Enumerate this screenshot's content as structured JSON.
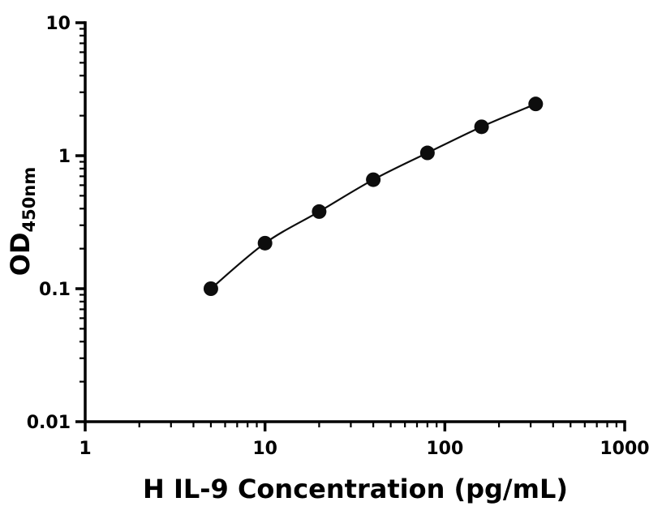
{
  "chart_data": {
    "type": "scatter",
    "subtype": "standard-curve-with-smooth-line",
    "title": "",
    "xlabel": "H IL-9 Concentration (pg/mL)",
    "ylabel": "OD450nm",
    "ylabel_main": "OD",
    "ylabel_sub": "450nm",
    "x_scale": "log",
    "y_scale": "log",
    "xlim": [
      1,
      1000
    ],
    "ylim": [
      0.01,
      10
    ],
    "x": [
      5,
      10,
      20,
      40,
      80,
      160,
      320
    ],
    "y": [
      0.1,
      0.22,
      0.38,
      0.66,
      1.05,
      1.65,
      2.45
    ],
    "x_ticks": [
      {
        "v": 1,
        "label": "1"
      },
      {
        "v": 10,
        "label": "10"
      },
      {
        "v": 100,
        "label": "100"
      },
      {
        "v": 1000,
        "label": "1000"
      }
    ],
    "y_ticks": [
      {
        "v": 0.01,
        "label": "0.01"
      },
      {
        "v": 0.1,
        "label": "0.1"
      },
      {
        "v": 1,
        "label": "1"
      },
      {
        "v": 10,
        "label": "10"
      }
    ],
    "grid": false,
    "legend": "none",
    "marker_shape": "filled-circle",
    "marker_radius": 9,
    "marker_color": "#0d0d0d",
    "line_color": "#0d0d0d",
    "axis_color": "#000000",
    "background": "#ffffff"
  }
}
